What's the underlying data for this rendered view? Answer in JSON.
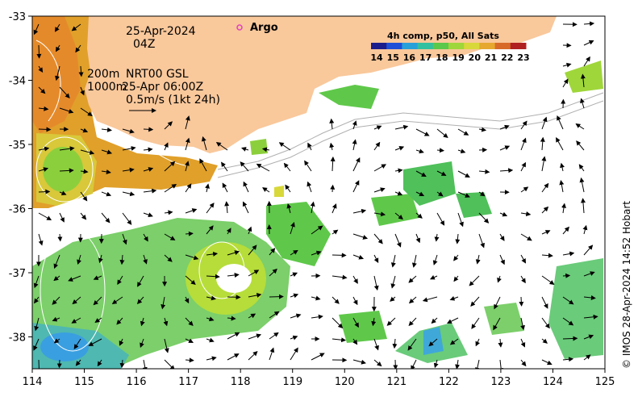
{
  "map": {
    "date": "25-Apr-2024",
    "hour": "04Z",
    "isobath_label_1": "200m",
    "isobath_label_2": "1000m",
    "product": "NRT00 GSL",
    "product_time": "25-Apr 06:00Z",
    "vector_scale": "0.5m/s (1kt 24h)",
    "argo_label": "Argo",
    "credit": "© IMOS 28-Apr-2024 14:52 Hobart",
    "colorbar": {
      "title": "4h comp, p50, All Sats",
      "ticks": [
        "14",
        "15",
        "16",
        "17",
        "18",
        "19",
        "20",
        "21",
        "22",
        "23"
      ],
      "colors": [
        "#1c1c8c",
        "#1f4fd6",
        "#2aa0d8",
        "#33c0a0",
        "#5ac84a",
        "#9fd63a",
        "#d8d83a",
        "#e6a82e",
        "#d86a28",
        "#b02020"
      ]
    },
    "x_ticks": [
      "114",
      "115",
      "116",
      "117",
      "118",
      "119",
      "120",
      "121",
      "122",
      "123",
      "124",
      "125"
    ],
    "y_ticks": [
      "-33",
      "-34",
      "-35",
      "-36",
      "-37",
      "-38"
    ],
    "colors": {
      "land": "#f9c89b",
      "argo": "#e040c0",
      "isobath": "#b0b0b0",
      "contour": "#ffffff"
    }
  }
}
